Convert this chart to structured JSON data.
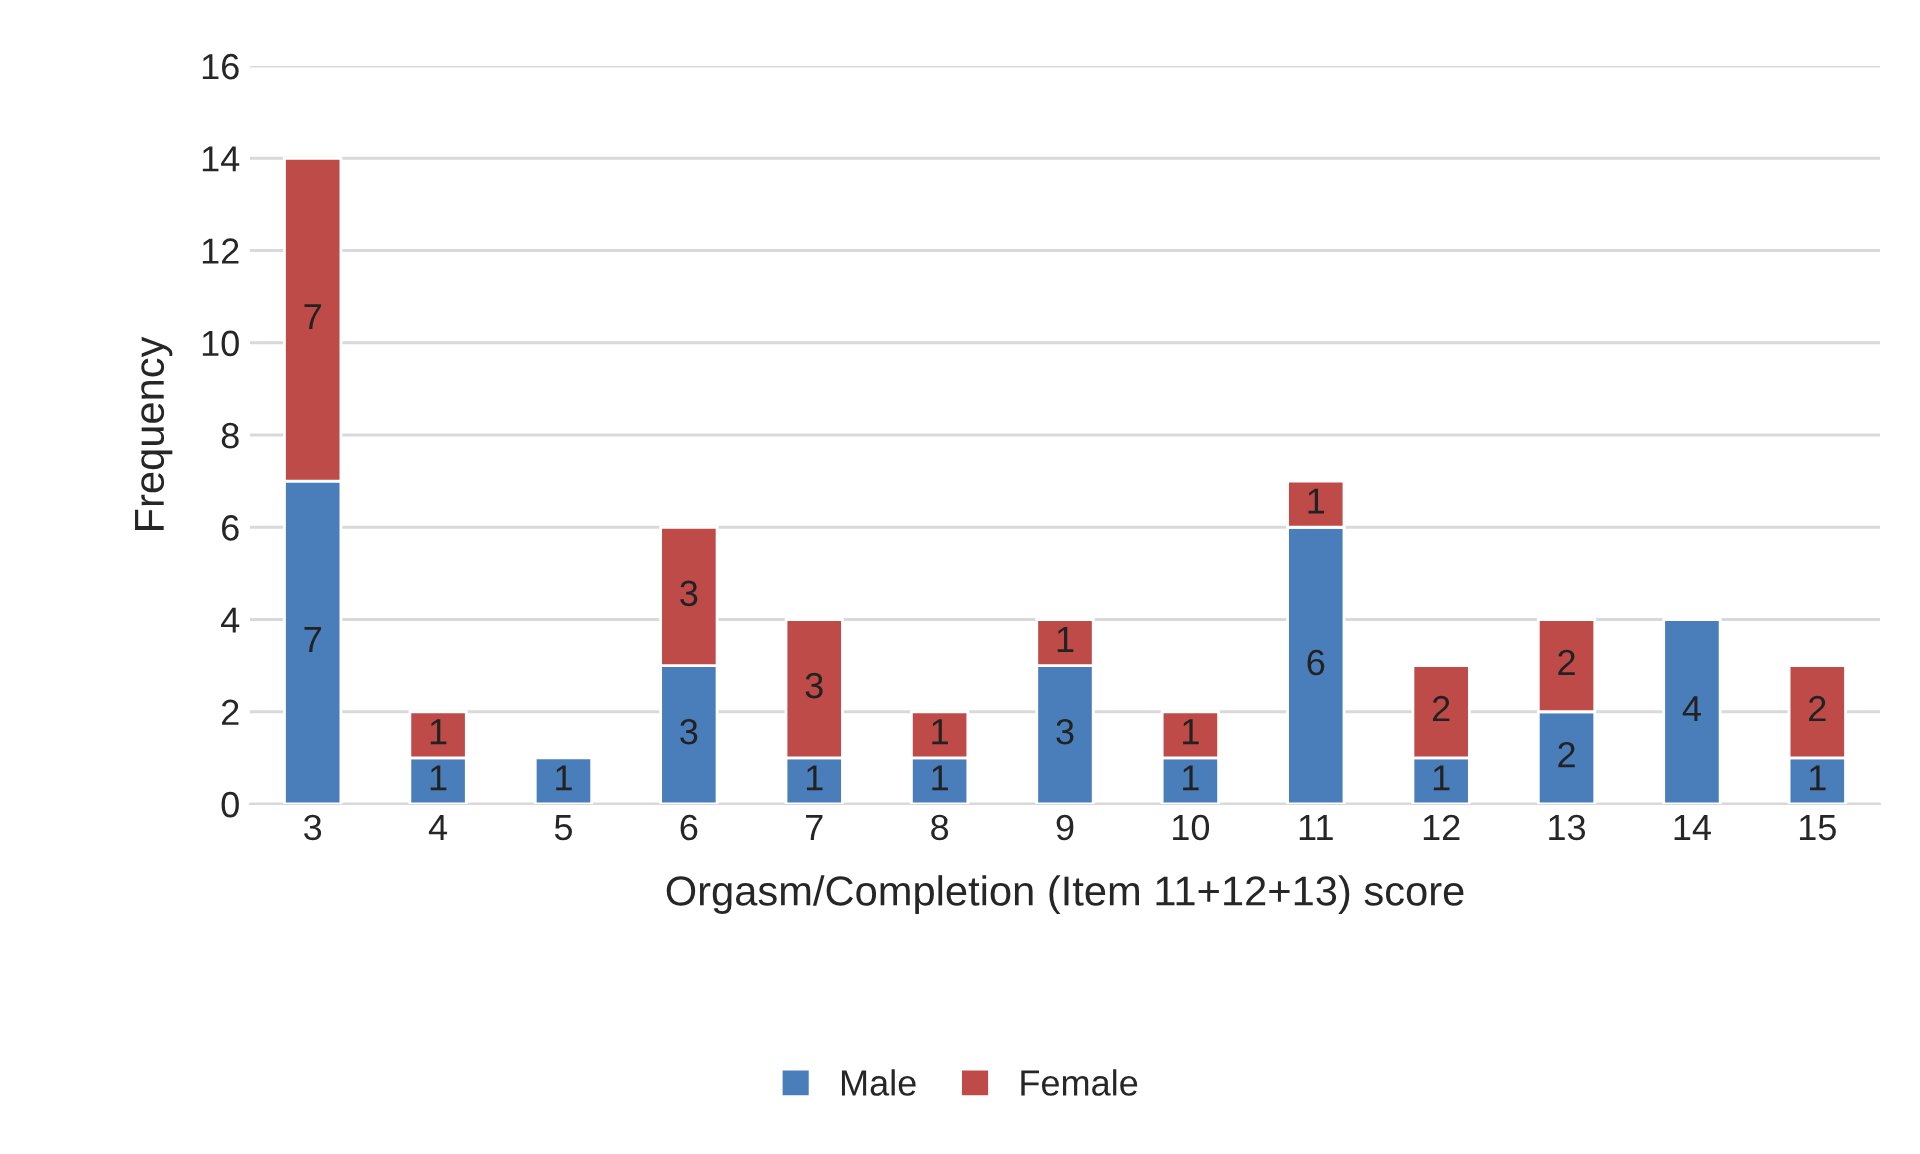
{
  "chart_data": {
    "type": "bar",
    "xlabel": "Orgasm/Completion (Item 11+12+13) score",
    "ylabel": "Frequency",
    "categories": [
      "3",
      "4",
      "5",
      "6",
      "7",
      "8",
      "9",
      "10",
      "11",
      "12",
      "13",
      "14",
      "15"
    ],
    "series": [
      {
        "name": "Male",
        "color": "#4a7ebb",
        "values": [
          7,
          1,
          1,
          3,
          1,
          1,
          3,
          1,
          6,
          1,
          2,
          4,
          1
        ]
      },
      {
        "name": "Female",
        "color": "#be4b48",
        "values": [
          7,
          1,
          null,
          3,
          3,
          1,
          1,
          1,
          1,
          2,
          2,
          null,
          2
        ]
      }
    ],
    "stacked": true,
    "data_labels": true,
    "ylim": [
      0,
      16
    ],
    "yticks": [
      0,
      2,
      4,
      6,
      8,
      10,
      12,
      14,
      16
    ],
    "grid": "y",
    "legend": "bottom"
  }
}
